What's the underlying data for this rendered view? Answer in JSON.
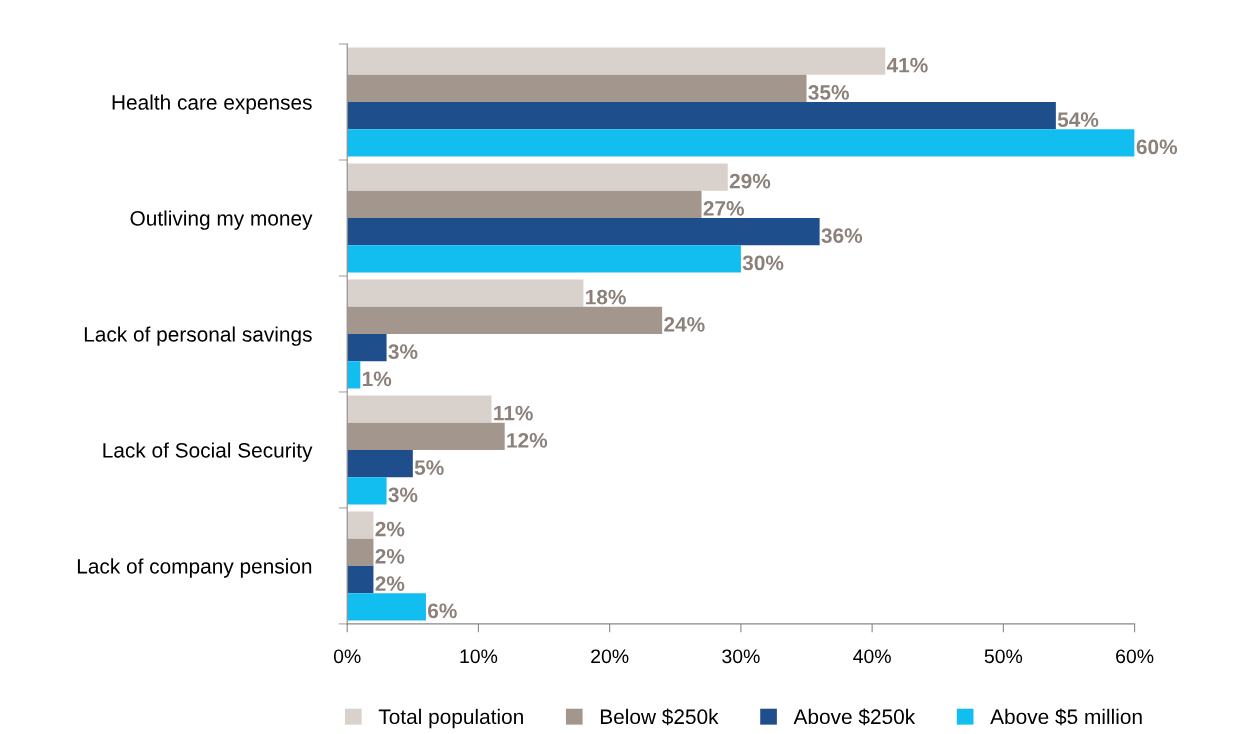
{
  "chart_data": {
    "type": "bar",
    "orientation": "horizontal",
    "categories": [
      "Health care expenses",
      "Outliving my money",
      "Lack of personal savings",
      "Lack of Social Security",
      "Lack of company pension"
    ],
    "series": [
      {
        "name": "Total population",
        "color": "#d9d2cc",
        "values": [
          41,
          29,
          18,
          11,
          2
        ],
        "value_labels": [
          "41%",
          "29%",
          "18%",
          "11%",
          "2%"
        ]
      },
      {
        "name": "Below $250k",
        "color": "#a2968d",
        "values": [
          35,
          27,
          24,
          12,
          2
        ],
        "value_labels": [
          "35%",
          "27%",
          "24%",
          "12%",
          "2%"
        ]
      },
      {
        "name": "Above $250k",
        "color": "#1f4e8c",
        "values": [
          54,
          36,
          3,
          5,
          2
        ],
        "value_labels": [
          "54%",
          "36%",
          "3%",
          "5%",
          "2%"
        ]
      },
      {
        "name": "Above $5 million",
        "color": "#12bdf0",
        "values": [
          60,
          30,
          1,
          3,
          6
        ],
        "value_labels": [
          "60%",
          "30%",
          "1%",
          "3%",
          "6%"
        ]
      }
    ],
    "xlim": [
      0,
      60
    ],
    "xticks": [
      {
        "value": 0,
        "label": "0%"
      },
      {
        "value": 10,
        "label": "10%"
      },
      {
        "value": 20,
        "label": "20%"
      },
      {
        "value": 30,
        "label": "30%"
      },
      {
        "value": 40,
        "label": "40%"
      },
      {
        "value": 50,
        "label": "50%"
      },
      {
        "value": 60,
        "label": "60%"
      }
    ],
    "grid": false,
    "legend": "bottom"
  }
}
